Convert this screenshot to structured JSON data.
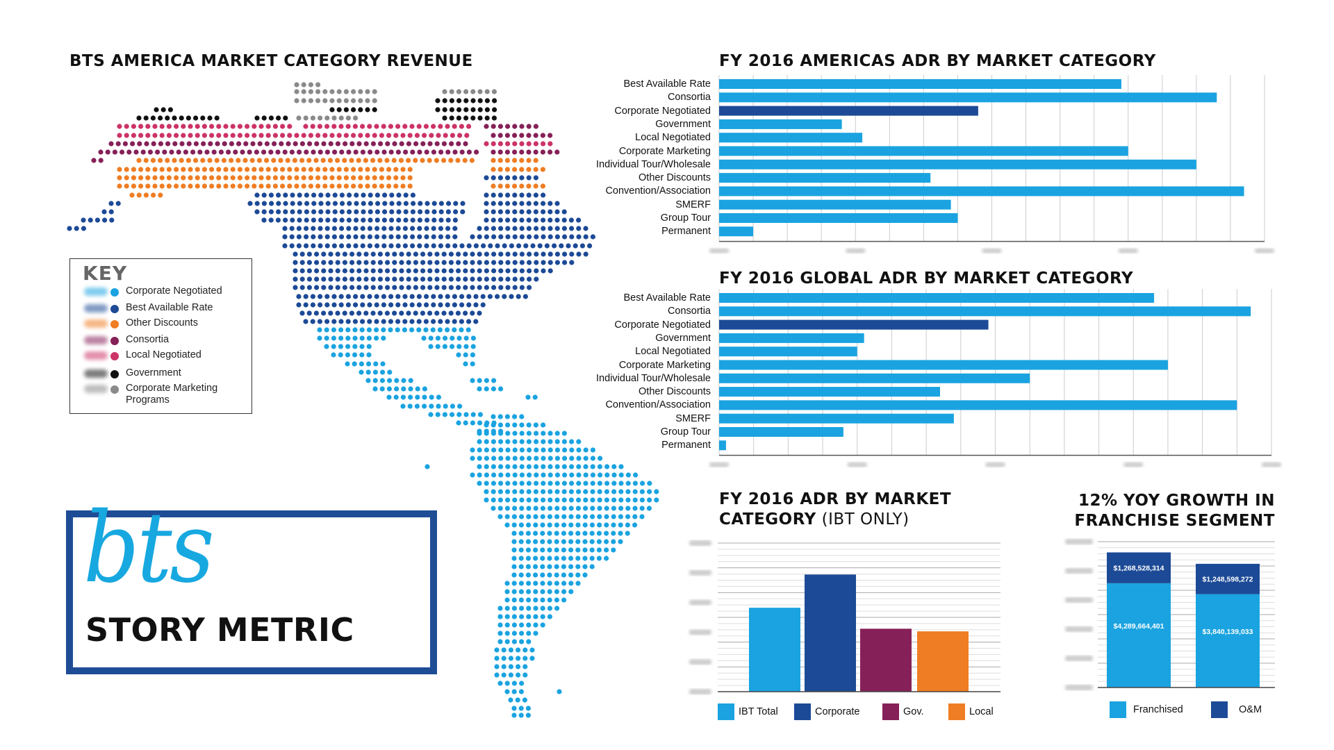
{
  "map": {
    "title": "BTS AMERICA MARKET CATEGORY REVENUE",
    "colors": {
      "gray": "#8a8a8a",
      "black": "#111111",
      "pink": "#cc3366",
      "purple": "#862058",
      "orange": "#ef7d23",
      "navy": "#1c4a96",
      "light_blue": "#1aa3e0"
    }
  },
  "key": {
    "title": "KEY",
    "items": [
      {
        "label": "Corporate Negotiated",
        "color": "#1aa3e0"
      },
      {
        "label": "Best Available Rate",
        "color": "#1c4a96"
      },
      {
        "label": "Other Discounts",
        "color": "#ef7d23"
      },
      {
        "label": "Consortia",
        "color": "#862058"
      },
      {
        "label": "Local Negotiated",
        "color": "#cc3366"
      },
      {
        "label": "Government",
        "color": "#111111"
      },
      {
        "label": "Corporate Marketing Programs",
        "color": "#8a8a8a"
      }
    ]
  },
  "brand": {
    "logo_text": "bts",
    "tagline": "STORY METRIC",
    "box_color": "#1e4d96",
    "logo_color": "#17a8e0"
  },
  "chart_data": [
    {
      "type": "bar",
      "orientation": "horizontal",
      "title": "FY 2016 AMERICAS ADR BY MARKET CATEGORY",
      "categories": [
        "Best Available Rate",
        "Consortia",
        "Corporate Negotiated",
        "Government",
        "Local Negotiated",
        "Corporate Marketing",
        "Individual Tour/Wholesale",
        "Other Discounts",
        "Convention/Association",
        "SMERF",
        "Group Tour",
        "Permanent"
      ],
      "values": [
        59,
        73,
        38,
        18,
        21,
        60,
        70,
        31,
        77,
        34,
        35,
        5
      ],
      "highlight_index": 2,
      "colors": {
        "bar": "#1aa3e0",
        "highlight": "#1c4a96",
        "grid": "#cccccc"
      },
      "xlim": [
        0,
        80
      ],
      "grid": true
    },
    {
      "type": "bar",
      "orientation": "horizontal",
      "title": "FY 2016 GLOBAL ADR BY MARKET CATEGORY",
      "categories": [
        "Best Available Rate",
        "Consortia",
        "Corporate Negotiated",
        "Government",
        "Local Negotiated",
        "Corporate Marketing",
        "Individual Tour/Wholesale",
        "Other Discounts",
        "Convention/Association",
        "SMERF",
        "Group Tour",
        "Permanent"
      ],
      "values": [
        63,
        77,
        39,
        21,
        20,
        65,
        45,
        32,
        75,
        34,
        18,
        1
      ],
      "highlight_index": 2,
      "colors": {
        "bar": "#1aa3e0",
        "highlight": "#1c4a96",
        "grid": "#cccccc"
      },
      "xlim": [
        0,
        80
      ],
      "grid": true
    },
    {
      "type": "bar",
      "title": "FY 2016 ADR BY MARKET",
      "title_line2_bold": "CATEGORY",
      "title_line2_light": " (IBT ONLY)",
      "categories": [
        "IBT Total",
        "Corporate",
        "Gov.",
        "Local"
      ],
      "values": [
        96,
        134,
        72,
        69
      ],
      "colors": [
        "#1aa3e0",
        "#1c4a96",
        "#862058",
        "#ef7d23"
      ],
      "ylim": [
        0,
        170
      ],
      "grid": true,
      "legend": "bottom"
    },
    {
      "type": "bar",
      "stacked": true,
      "title": "12% YOY GROWTH IN",
      "title_line2": "FRANCHISE SEGMENT",
      "categories": [
        "Franchised",
        "O&M"
      ],
      "series": [
        {
          "values": [
            4289664401,
            3840139033
          ],
          "labels": [
            "$4,289,664,401",
            "$3,840,139,033"
          ],
          "color": "#1aa3e0"
        },
        {
          "values": [
            1268528314,
            1248598272
          ],
          "labels": [
            "$1,268,528,314",
            "$1,248,598,272"
          ],
          "color": "#1c4a96"
        }
      ],
      "legend_items": [
        {
          "label": "Franchised",
          "color": "#1aa3e0"
        },
        {
          "label": "O&M",
          "color": "#1c4a96"
        }
      ],
      "ylim": [
        0,
        6000000000
      ],
      "grid": true,
      "legend": "bottom"
    }
  ]
}
